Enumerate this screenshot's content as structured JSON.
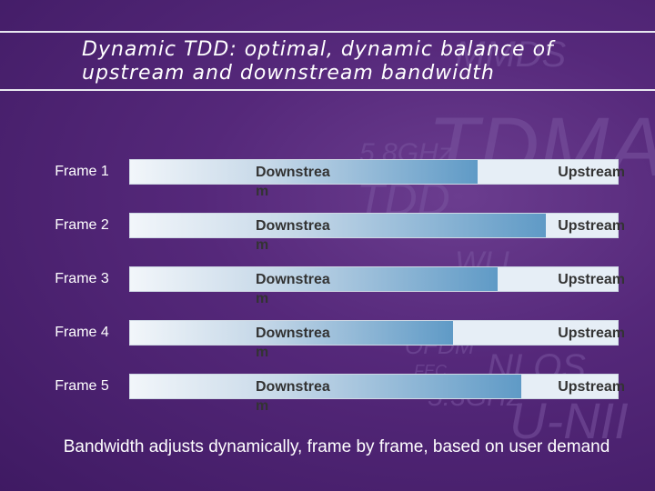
{
  "title": "Dynamic TDD: optimal, dynamic balance of upstream and downstream bandwidth",
  "background_words": [
    "MMDS",
    "TDMA",
    "5.8GHz",
    "TDD",
    "WLL",
    "OFDM",
    "FEC",
    "NLOS",
    "5.3GHz",
    "U-NII"
  ],
  "frames": [
    {
      "label": "Frame 1",
      "downstream": "Downstrea m",
      "upstream": "Upstream",
      "downstream_fraction": 0.71
    },
    {
      "label": "Frame 2",
      "downstream": "Downstrea m",
      "upstream": "Upstream",
      "downstream_fraction": 0.85
    },
    {
      "label": "Frame 3",
      "downstream": "Downstrea m",
      "upstream": "Upstream",
      "downstream_fraction": 0.75
    },
    {
      "label": "Frame 4",
      "downstream": "Downstrea m",
      "upstream": "Upstream",
      "downstream_fraction": 0.66
    },
    {
      "label": "Frame 5",
      "downstream": "Downstrea m",
      "upstream": "Upstream",
      "downstream_fraction": 0.8
    }
  ],
  "caption": "Bandwidth adjusts dynamically, frame by frame, based on user demand",
  "colors": {
    "downstream_end": "#5f9ac6",
    "upstream_fill": "#e6eef6",
    "text_dark": "#333333",
    "background": "#55287a"
  }
}
